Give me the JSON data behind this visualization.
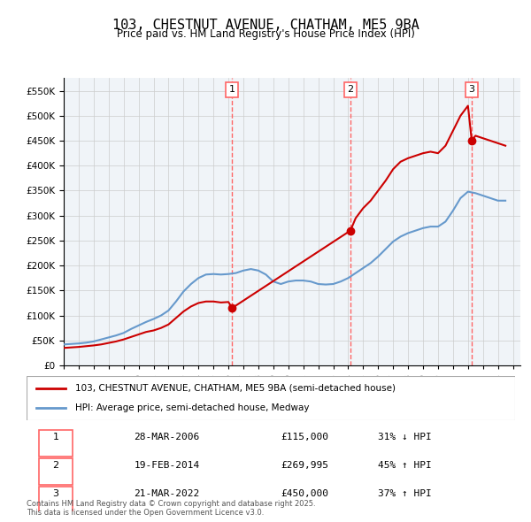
{
  "title": "103, CHESTNUT AVENUE, CHATHAM, ME5 9BA",
  "subtitle": "Price paid vs. HM Land Registry's House Price Index (HPI)",
  "ylabel": "",
  "ylim": [
    0,
    575000
  ],
  "yticks": [
    0,
    50000,
    100000,
    150000,
    200000,
    250000,
    300000,
    350000,
    400000,
    450000,
    500000,
    550000
  ],
  "background_color": "#ffffff",
  "grid_color": "#cccccc",
  "sale_color": "#cc0000",
  "hpi_color": "#6699cc",
  "vline_color": "#ff6666",
  "sale_dates": [
    "2006-03-28",
    "2014-02-19",
    "2022-03-21"
  ],
  "sale_prices": [
    115000,
    269995,
    450000
  ],
  "sale_labels": [
    "1",
    "2",
    "3"
  ],
  "sale_pct": [
    "31% ↓ HPI",
    "45% ↑ HPI",
    "37% ↑ HPI"
  ],
  "sale_date_labels": [
    "28-MAR-2006",
    "19-FEB-2014",
    "21-MAR-2022"
  ],
  "legend_sale_label": "103, CHESTNUT AVENUE, CHATHAM, ME5 9BA (semi-detached house)",
  "legend_hpi_label": "HPI: Average price, semi-detached house, Medway",
  "footnote": "Contains HM Land Registry data © Crown copyright and database right 2025.\nThis data is licensed under the Open Government Licence v3.0.",
  "hpi_data": {
    "years": [
      1995,
      1995.5,
      1996,
      1996.5,
      1997,
      1997.5,
      1998,
      1998.5,
      1999,
      1999.5,
      2000,
      2000.5,
      2001,
      2001.5,
      2002,
      2002.5,
      2003,
      2003.5,
      2004,
      2004.5,
      2005,
      2005.5,
      2006,
      2006.5,
      2007,
      2007.5,
      2008,
      2008.5,
      2009,
      2009.5,
      2010,
      2010.5,
      2011,
      2011.5,
      2012,
      2012.5,
      2013,
      2013.5,
      2014,
      2014.5,
      2015,
      2015.5,
      2016,
      2016.5,
      2017,
      2017.5,
      2018,
      2018.5,
      2019,
      2019.5,
      2020,
      2020.5,
      2021,
      2021.5,
      2022,
      2022.5,
      2023,
      2023.5,
      2024,
      2024.5
    ],
    "values": [
      42000,
      43000,
      44000,
      45500,
      48000,
      52000,
      56000,
      60000,
      65000,
      73000,
      80000,
      87000,
      93000,
      100000,
      110000,
      128000,
      148000,
      163000,
      175000,
      182000,
      183000,
      182000,
      183000,
      185000,
      190000,
      193000,
      190000,
      182000,
      168000,
      163000,
      168000,
      170000,
      170000,
      168000,
      163000,
      162000,
      163000,
      168000,
      175000,
      185000,
      195000,
      205000,
      218000,
      233000,
      248000,
      258000,
      265000,
      270000,
      275000,
      278000,
      278000,
      288000,
      310000,
      335000,
      348000,
      345000,
      340000,
      335000,
      330000,
      330000
    ]
  },
  "sale_line_data": {
    "years": [
      1995,
      1995.5,
      1996,
      1996.5,
      1997,
      1997.5,
      1998,
      1998.5,
      1999,
      1999.5,
      2000,
      2000.5,
      2001,
      2001.5,
      2002,
      2002.5,
      2003,
      2003.5,
      2004,
      2004.5,
      2005,
      2005.5,
      2006,
      2006.25,
      2014.15,
      2014.5,
      2015,
      2015.5,
      2016,
      2016.5,
      2017,
      2017.5,
      2018,
      2018.5,
      2019,
      2019.5,
      2020,
      2020.5,
      2021,
      2021.5,
      2022,
      2022.25,
      2022.5,
      2023,
      2023.5,
      2024,
      2024.5
    ],
    "values": [
      35000,
      36000,
      37000,
      38500,
      40000,
      42000,
      45000,
      48000,
      52000,
      57000,
      62000,
      67000,
      70000,
      75000,
      82000,
      95000,
      108000,
      118000,
      125000,
      128000,
      128000,
      126000,
      127000,
      115000,
      269995,
      295000,
      315000,
      330000,
      350000,
      370000,
      393000,
      408000,
      415000,
      420000,
      425000,
      428000,
      425000,
      440000,
      470000,
      500000,
      520000,
      450000,
      460000,
      455000,
      450000,
      445000,
      440000
    ]
  }
}
